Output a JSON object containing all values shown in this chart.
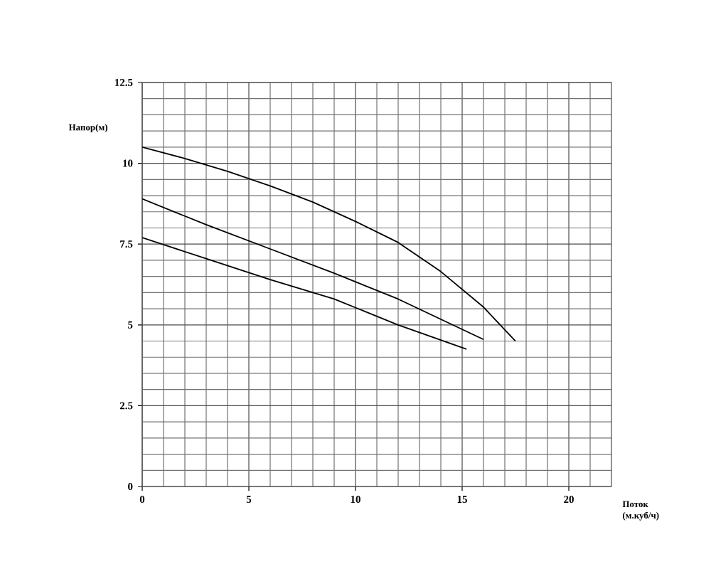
{
  "chart_data": {
    "type": "line",
    "xlabel": "Поток (м.куб/ч)",
    "ylabel": "Напор(м)",
    "xlim": [
      0,
      22
    ],
    "ylim": [
      0,
      12.5
    ],
    "xticks": [
      0,
      {
        "value": 1,
        "label": null
      },
      {
        "value": 2,
        "label": null
      },
      {
        "value": 3,
        "label": null
      },
      {
        "value": 4,
        "label": null
      },
      5,
      {
        "value": 6,
        "label": null
      },
      {
        "value": 7,
        "label": null
      },
      {
        "value": 8,
        "label": null
      },
      {
        "value": 9,
        "label": null
      },
      10,
      {
        "value": 11,
        "label": null
      },
      {
        "value": 12,
        "label": null
      },
      {
        "value": 13,
        "label": null
      },
      {
        "value": 14,
        "label": null
      },
      15,
      {
        "value": 16,
        "label": null
      },
      {
        "value": 17,
        "label": null
      },
      {
        "value": 18,
        "label": null
      },
      {
        "value": 19,
        "label": null
      },
      20,
      {
        "value": 21,
        "label": null
      }
    ],
    "yticks": [
      0,
      {
        "value": 0.5,
        "label": null
      },
      {
        "value": 1,
        "label": null
      },
      {
        "value": 1.5,
        "label": null
      },
      {
        "value": 2,
        "label": null
      },
      2.5,
      {
        "value": 3,
        "label": null
      },
      {
        "value": 3.5,
        "label": null
      },
      {
        "value": 4,
        "label": null
      },
      {
        "value": 4.5,
        "label": null
      },
      5,
      {
        "value": 5.5,
        "label": null
      },
      {
        "value": 6,
        "label": null
      },
      {
        "value": 6.5,
        "label": null
      },
      {
        "value": 7,
        "label": null
      },
      7.5,
      {
        "value": 8,
        "label": null
      },
      {
        "value": 8.5,
        "label": null
      },
      {
        "value": 9,
        "label": null
      },
      {
        "value": 9.5,
        "label": null
      },
      10,
      {
        "value": 10.5,
        "label": null
      },
      {
        "value": 11,
        "label": null
      },
      {
        "value": 11.5,
        "label": null
      },
      {
        "value": 12,
        "label": null
      },
      12.5
    ],
    "grid": true,
    "marker": "none",
    "line_style": "solid",
    "series": [
      {
        "color": "#000000",
        "x": [
          0,
          2,
          4,
          6,
          8,
          10,
          12,
          14,
          16,
          17.5
        ],
        "values": [
          10.5,
          10.15,
          9.75,
          9.3,
          8.8,
          8.2,
          7.55,
          6.65,
          5.55,
          4.5
        ]
      },
      {
        "color": "#000000",
        "x": [
          0,
          3,
          6,
          9,
          12,
          16
        ],
        "values": [
          8.9,
          8.1,
          7.35,
          6.6,
          5.8,
          4.55
        ]
      },
      {
        "color": "#000000",
        "x": [
          0,
          3,
          6,
          9,
          12,
          15.2
        ],
        "values": [
          7.7,
          7.05,
          6.4,
          5.8,
          5.0,
          4.25
        ]
      }
    ]
  }
}
